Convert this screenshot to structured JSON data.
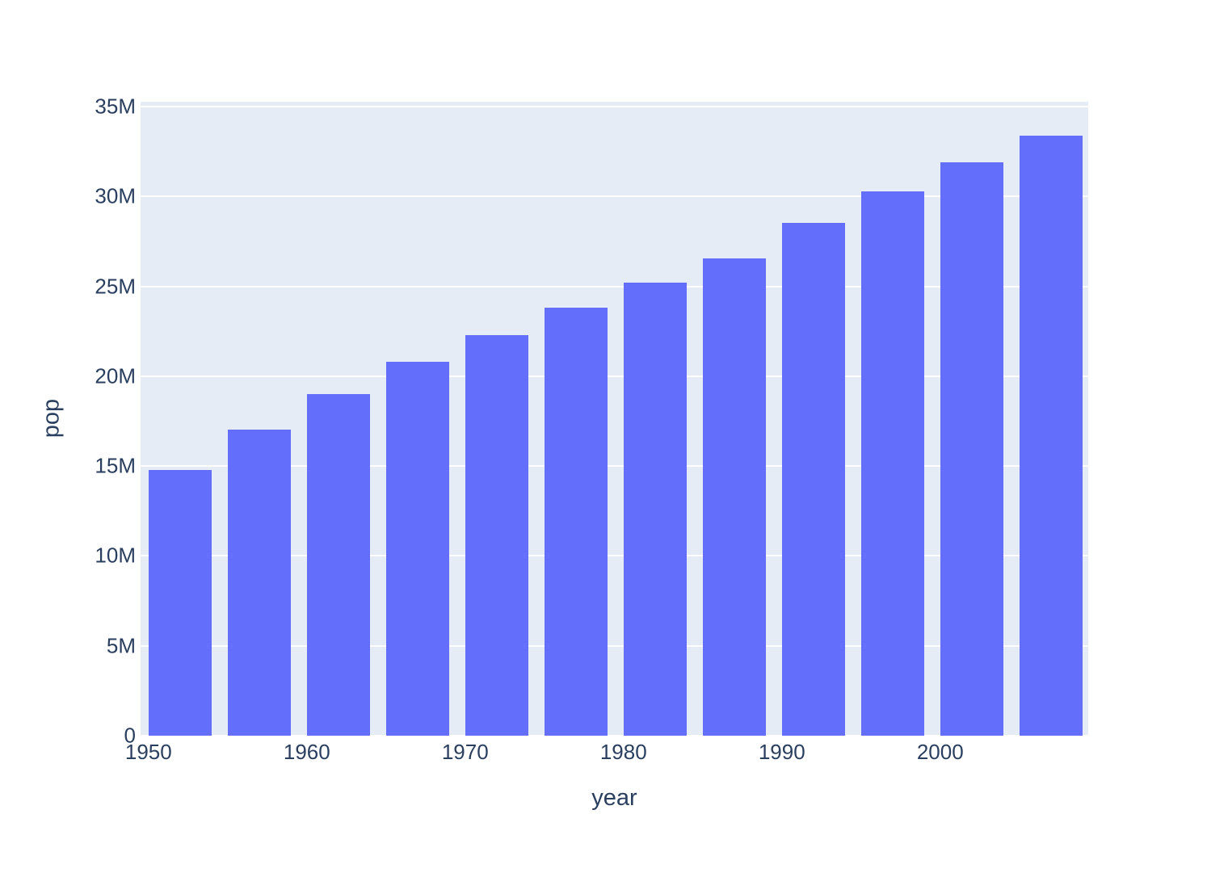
{
  "figure": {
    "background_color": "#ffffff",
    "plot_background_color": "#e5ecf6",
    "bar_color": "#636efa",
    "grid_color": "#ffffff",
    "text_color": "#2a3f5f"
  },
  "chart_data": {
    "type": "bar",
    "title": "",
    "xlabel": "year",
    "ylabel": "pop",
    "x": [
      1952,
      1957,
      1962,
      1967,
      1972,
      1977,
      1982,
      1987,
      1992,
      1997,
      2002,
      2007
    ],
    "y": [
      14785584,
      17010154,
      18985849,
      20819767,
      22284500,
      23796400,
      25201900,
      26549700,
      28523502,
      30305843,
      31902268,
      33390141
    ],
    "bar_width_x": 4,
    "xlim": [
      1949.5,
      2009.35
    ],
    "ylim": [
      0,
      35270000
    ],
    "grid": true,
    "legend_position": "none",
    "x_ticks": [
      {
        "value": 1950,
        "label": "1950"
      },
      {
        "value": 1960,
        "label": "1960"
      },
      {
        "value": 1970,
        "label": "1970"
      },
      {
        "value": 1980,
        "label": "1980"
      },
      {
        "value": 1990,
        "label": "1990"
      },
      {
        "value": 2000,
        "label": "2000"
      }
    ],
    "y_ticks": [
      {
        "value": 0,
        "label": "0"
      },
      {
        "value": 5000000,
        "label": "5M"
      },
      {
        "value": 10000000,
        "label": "10M"
      },
      {
        "value": 15000000,
        "label": "15M"
      },
      {
        "value": 20000000,
        "label": "20M"
      },
      {
        "value": 25000000,
        "label": "25M"
      },
      {
        "value": 30000000,
        "label": "30M"
      },
      {
        "value": 35000000,
        "label": "35M"
      }
    ]
  }
}
